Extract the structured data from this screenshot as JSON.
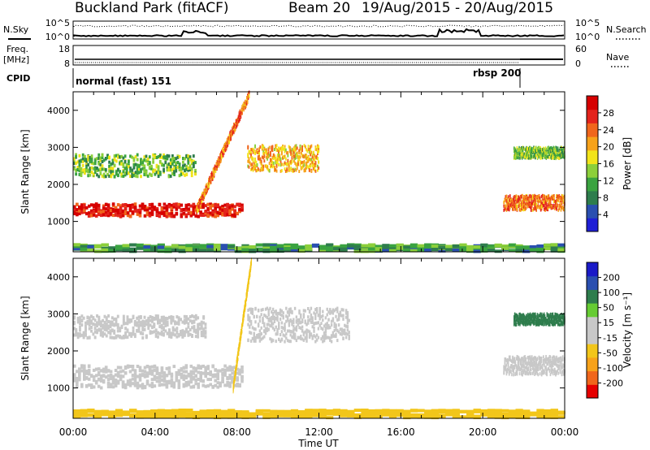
{
  "header": {
    "site": "Buckland Park (fitACF)",
    "beam": "Beam 20",
    "dates": "19/Aug/2015 - 20/Aug/2015"
  },
  "top_panels": {
    "nsky_label": "N.Sky",
    "nsearch_label": "N.Search",
    "noise_ticks_left": [
      "10^5",
      "10^0"
    ],
    "noise_ticks_right": [
      "10^5",
      "10^0"
    ],
    "freq_label_line1": "Freq.",
    "freq_label_line2": "[MHz]",
    "freq_ticks": [
      "18",
      "8"
    ],
    "nave_ticks": [
      "60",
      "0"
    ],
    "nave_label": "Nave",
    "cpid_label": "CPID",
    "modes": [
      "normal (fast) 151",
      "rbsp 200"
    ]
  },
  "colors": {
    "power_scale": [
      "#1f1fd6",
      "#2a4fb0",
      "#2e7d4d",
      "#3aa340",
      "#8ccf3a",
      "#f2e41a",
      "#f7a21a",
      "#f0661c",
      "#e3231c",
      "#d60000"
    ],
    "velocity_scale": [
      "#e60000",
      "#f0661c",
      "#f7a21a",
      "#f2c61a",
      "#c8c8c8",
      "#c8c8c8",
      "#66cc33",
      "#2e7d4d",
      "#2a4fb0",
      "#1a1ac8"
    ]
  },
  "chart_data": [
    {
      "type": "heatmap",
      "title": "",
      "xlabel": "Time UT",
      "ylabel": "Slant Range [km]",
      "x_ticks": [
        "00:00",
        "04:00",
        "08:00",
        "12:00",
        "16:00",
        "20:00",
        "00:00"
      ],
      "y_ticks": [
        "1000",
        "2000",
        "3000",
        "4000"
      ],
      "xlim_hours": [
        0,
        24
      ],
      "ylim_km": [
        180,
        4500
      ],
      "colorbar": {
        "label": "Power [dB]",
        "ticks": [
          "4",
          "8",
          "12",
          "16",
          "20",
          "24",
          "28"
        ],
        "range": [
          0,
          30
        ]
      },
      "features": [
        {
          "name": "strong band",
          "t_start": 0.0,
          "t_end": 8.3,
          "r_center": 1300,
          "r_halfwidth": 170,
          "value": 27
        },
        {
          "name": "rising trace",
          "t_start": 6.0,
          "t_end": 8.6,
          "r_start": 1300,
          "r_end": 4450,
          "value": 22
        },
        {
          "name": "upper patch",
          "t_start": 8.5,
          "t_end": 12.0,
          "r_center": 2700,
          "r_halfwidth": 350,
          "value": 19
        },
        {
          "name": "mid patch",
          "t_start": 0.0,
          "t_end": 6.0,
          "r_center": 2500,
          "r_halfwidth": 300,
          "value": 12
        },
        {
          "name": "late band",
          "t_start": 21.0,
          "t_end": 24.0,
          "r_center": 1500,
          "r_halfwidth": 200,
          "value": 22
        },
        {
          "name": "late upper",
          "t_start": 21.5,
          "t_end": 24.0,
          "r_center": 2850,
          "r_halfwidth": 150,
          "value": 12
        },
        {
          "name": "ground range",
          "t_start": 0.0,
          "t_end": 24.0,
          "r_center": 280,
          "r_halfwidth": 90,
          "value": 10
        }
      ]
    },
    {
      "type": "heatmap",
      "title": "",
      "xlabel": "Time UT",
      "ylabel": "Slant Range [km]",
      "x_ticks": [
        "00:00",
        "04:00",
        "08:00",
        "12:00",
        "16:00",
        "20:00",
        "00:00"
      ],
      "y_ticks": [
        "1000",
        "2000",
        "3000",
        "4000"
      ],
      "xlim_hours": [
        0,
        24
      ],
      "ylim_km": [
        180,
        4500
      ],
      "colorbar": {
        "label": "Velocity [m s⁻¹]",
        "ticks": [
          "-200",
          "-100",
          "-50",
          "-15",
          "15",
          "50",
          "100",
          "200"
        ],
        "range": [
          -250,
          250
        ]
      },
      "features": [
        {
          "name": "low band",
          "t_start": 0.0,
          "t_end": 8.3,
          "r_center": 1300,
          "r_halfwidth": 300,
          "value": 0
        },
        {
          "name": "rising trace",
          "t_start": 7.8,
          "t_end": 8.7,
          "r_start": 1000,
          "r_end": 4450,
          "value": -60
        },
        {
          "name": "upper patch",
          "t_start": 8.5,
          "t_end": 13.5,
          "r_center": 2700,
          "r_halfwidth": 450,
          "value": 0
        },
        {
          "name": "mid patch",
          "t_start": 0.0,
          "t_end": 6.5,
          "r_center": 2650,
          "r_halfwidth": 300,
          "value": 0
        },
        {
          "name": "late band",
          "t_start": 21.0,
          "t_end": 24.0,
          "r_center": 1600,
          "r_halfwidth": 250,
          "value": 0
        },
        {
          "name": "late upper",
          "t_start": 21.5,
          "t_end": 24.0,
          "r_center": 2850,
          "r_halfwidth": 150,
          "value": 120
        },
        {
          "name": "ground range",
          "t_start": 0.0,
          "t_end": 24.0,
          "r_center": 300,
          "r_halfwidth": 100,
          "value": -60
        }
      ]
    }
  ]
}
